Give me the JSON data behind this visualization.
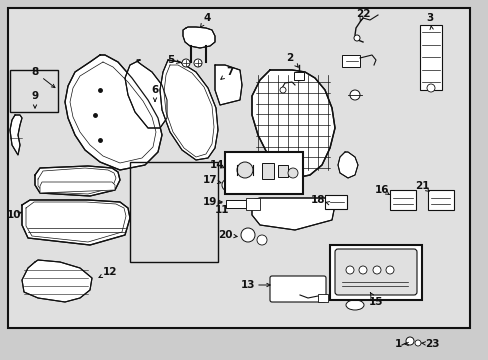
{
  "bg_color": "#cccccc",
  "inner_bg": "#e0e0e0",
  "lc": "#111111",
  "fig_width": 4.89,
  "fig_height": 3.6,
  "dpi": 100
}
